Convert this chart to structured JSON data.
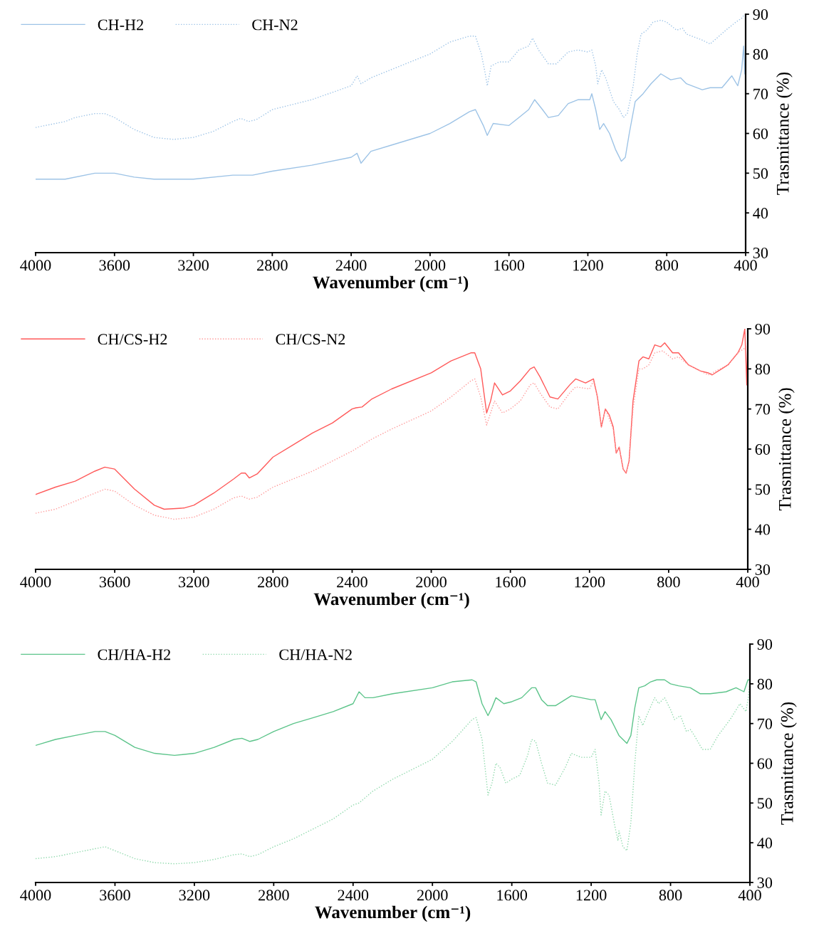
{
  "chart_data": [
    {
      "type": "line",
      "xlabel": "Wavenumber (cm⁻¹)",
      "ylabel": "Trasmittance (%)",
      "xlim": [
        4000,
        400
      ],
      "ylim": [
        30,
        90
      ],
      "xticks": [
        4000,
        3600,
        3200,
        2800,
        2400,
        2000,
        1600,
        1200,
        800,
        400
      ],
      "yticks": [
        30,
        40,
        50,
        60,
        70,
        80,
        90
      ],
      "grid": false,
      "legend": "top left",
      "series": [
        {
          "name": "CH-H2",
          "color": "#9dc3e6",
          "line_style": "solid",
          "x": [
            4000,
            3850,
            3700,
            3600,
            3500,
            3400,
            3200,
            3000,
            2900,
            2800,
            2600,
            2400,
            2370,
            2350,
            2300,
            2200,
            2000,
            1900,
            1800,
            1770,
            1730,
            1710,
            1680,
            1600,
            1550,
            1500,
            1470,
            1430,
            1400,
            1350,
            1300,
            1250,
            1190,
            1180,
            1160,
            1140,
            1120,
            1090,
            1060,
            1030,
            1010,
            990,
            960,
            920,
            880,
            830,
            780,
            730,
            700,
            620,
            580,
            520,
            470,
            440,
            420,
            410,
            404
          ],
          "values": [
            48.5,
            48.5,
            50,
            50,
            49,
            48.5,
            48.5,
            49.5,
            49.5,
            50.5,
            52,
            54,
            55,
            52.5,
            55.5,
            57,
            60,
            62.5,
            65.5,
            66,
            62,
            59.5,
            62.5,
            62,
            64,
            66,
            68.5,
            66,
            64,
            64.5,
            67.5,
            68.5,
            68.5,
            70,
            66,
            61,
            62.5,
            60,
            56,
            53,
            54,
            60,
            68,
            70,
            72.5,
            75,
            73.5,
            74,
            72.5,
            71,
            71.5,
            71.5,
            74.5,
            72,
            76,
            82,
            75
          ]
        },
        {
          "name": "CH-N2",
          "color": "#9dc3e6",
          "line_style": "dotted",
          "x": [
            4000,
            3900,
            3850,
            3800,
            3700,
            3650,
            3600,
            3500,
            3400,
            3300,
            3200,
            3100,
            3000,
            2960,
            2920,
            2880,
            2800,
            2600,
            2400,
            2370,
            2350,
            2300,
            2200,
            2000,
            1900,
            1800,
            1770,
            1740,
            1720,
            1710,
            1690,
            1650,
            1600,
            1550,
            1500,
            1480,
            1450,
            1400,
            1360,
            1300,
            1250,
            1200,
            1180,
            1160,
            1150,
            1130,
            1110,
            1070,
            1040,
            1020,
            1000,
            970,
            950,
            930,
            900,
            870,
            830,
            800,
            750,
            720,
            700,
            620,
            580,
            500,
            450,
            420,
            405
          ],
          "values": [
            61.5,
            62.5,
            63,
            64,
            65,
            65,
            64,
            61,
            59,
            58.5,
            59,
            60.5,
            63,
            63.8,
            63,
            63.5,
            66,
            68.5,
            72,
            74.5,
            72.5,
            74,
            76,
            80,
            83,
            84.5,
            84.5,
            80,
            75,
            72,
            77,
            78,
            78,
            81,
            82,
            84,
            81,
            77.5,
            77.5,
            80.5,
            81,
            80.5,
            81,
            77,
            72.5,
            76,
            74,
            68,
            66,
            64,
            65,
            72,
            80,
            85,
            86,
            88,
            88.5,
            88,
            86,
            86.5,
            85,
            83.5,
            82.5,
            86,
            88,
            89,
            90
          ]
        }
      ]
    },
    {
      "type": "line",
      "xlabel": "Wavenumber (cm⁻¹)",
      "ylabel": "Trasmittance (%)",
      "xlim": [
        4000,
        400
      ],
      "ylim": [
        30,
        90
      ],
      "xticks": [
        4000,
        3600,
        3200,
        2800,
        2400,
        2000,
        1600,
        1200,
        800,
        400
      ],
      "yticks": [
        30,
        40,
        50,
        60,
        70,
        80,
        90
      ],
      "grid": false,
      "legend": "top left",
      "series": [
        {
          "name": "CH/CS-H2",
          "color": "#ff5a5a",
          "line_style": "solid",
          "x": [
            4000,
            3900,
            3800,
            3700,
            3650,
            3600,
            3500,
            3400,
            3350,
            3250,
            3200,
            3100,
            3000,
            2960,
            2940,
            2920,
            2880,
            2800,
            2700,
            2600,
            2500,
            2400,
            2380,
            2350,
            2300,
            2200,
            2000,
            1900,
            1800,
            1780,
            1750,
            1720,
            1700,
            1680,
            1640,
            1600,
            1550,
            1500,
            1480,
            1450,
            1400,
            1360,
            1300,
            1270,
            1220,
            1180,
            1160,
            1140,
            1120,
            1100,
            1080,
            1065,
            1050,
            1030,
            1015,
            1000,
            980,
            950,
            930,
            900,
            870,
            840,
            820,
            780,
            750,
            700,
            640,
            600,
            580,
            500,
            450,
            430,
            415,
            405,
            400
          ],
          "values": [
            48.7,
            50.5,
            52,
            54.5,
            55.5,
            55,
            50,
            46,
            45,
            45.3,
            46,
            49,
            52.5,
            54,
            54,
            52.8,
            53.8,
            58,
            61,
            64,
            66.5,
            70,
            70.3,
            70.5,
            72.5,
            75,
            79,
            82,
            84,
            84,
            80,
            69,
            72,
            76.5,
            73.5,
            74.5,
            77,
            80,
            80.5,
            78,
            73,
            72.5,
            76,
            77.5,
            76.5,
            77.5,
            73,
            65.5,
            70,
            68.5,
            65.5,
            59,
            60.5,
            55,
            54,
            57,
            72,
            82,
            83,
            82.5,
            86,
            85.5,
            86.5,
            84,
            84,
            81,
            79.5,
            79,
            78.5,
            81,
            84,
            86,
            90,
            76,
            88
          ]
        },
        {
          "name": "CH/CS-N2",
          "color": "#ff9999",
          "line_style": "dotted",
          "x": [
            4000,
            3900,
            3800,
            3700,
            3650,
            3600,
            3500,
            3400,
            3300,
            3200,
            3100,
            3000,
            2960,
            2920,
            2880,
            2800,
            2600,
            2400,
            2300,
            2200,
            2000,
            1900,
            1800,
            1780,
            1750,
            1720,
            1700,
            1680,
            1640,
            1600,
            1550,
            1500,
            1480,
            1450,
            1400,
            1360,
            1300,
            1270,
            1200,
            1180,
            1160,
            1140,
            1120,
            1080,
            1065,
            1050,
            1030,
            1015,
            1000,
            980,
            950,
            930,
            900,
            870,
            830,
            780,
            750,
            700,
            640,
            600,
            500,
            450,
            420,
            400
          ],
          "values": [
            44,
            45,
            47,
            49,
            50,
            49.5,
            46,
            43.5,
            42.5,
            43,
            45,
            47.8,
            48.3,
            47.5,
            48,
            50.5,
            54.5,
            59.5,
            62.5,
            65,
            69.5,
            73,
            77,
            77.5,
            73,
            66,
            69,
            72,
            69,
            70,
            72,
            76,
            76.5,
            74,
            70.5,
            70,
            74,
            75.5,
            75,
            77,
            73,
            65.5,
            70,
            65,
            59,
            60.5,
            55,
            54,
            57,
            70,
            80,
            80,
            81,
            84,
            84.5,
            82.5,
            83,
            81,
            79.5,
            78.5,
            81,
            84,
            85,
            86
          ]
        }
      ]
    },
    {
      "type": "line",
      "xlabel": "Wavenumber (cm⁻¹)",
      "ylabel": "Trasmittance (%)",
      "xlim": [
        4000,
        400
      ],
      "ylim": [
        30,
        90
      ],
      "xticks": [
        4000,
        3600,
        3200,
        2800,
        2400,
        2000,
        1600,
        1200,
        800,
        400
      ],
      "yticks": [
        30,
        40,
        50,
        60,
        70,
        80,
        90
      ],
      "grid": false,
      "legend": "top left",
      "series": [
        {
          "name": "CH/HA-H2",
          "color": "#5cc48a",
          "line_style": "solid",
          "x": [
            4000,
            3900,
            3800,
            3700,
            3650,
            3600,
            3500,
            3400,
            3300,
            3200,
            3100,
            3000,
            2960,
            2920,
            2880,
            2800,
            2700,
            2600,
            2500,
            2400,
            2370,
            2340,
            2300,
            2200,
            2000,
            1900,
            1800,
            1780,
            1750,
            1720,
            1700,
            1680,
            1640,
            1600,
            1550,
            1500,
            1480,
            1450,
            1420,
            1380,
            1300,
            1250,
            1200,
            1180,
            1150,
            1130,
            1100,
            1080,
            1060,
            1040,
            1020,
            1000,
            980,
            960,
            930,
            900,
            870,
            830,
            800,
            760,
            700,
            650,
            600,
            520,
            470,
            430,
            410,
            400
          ],
          "values": [
            64.5,
            66,
            67,
            68,
            68,
            67,
            64,
            62.5,
            62,
            62.5,
            64,
            66,
            66.3,
            65.5,
            66,
            68,
            70,
            71.5,
            73,
            75,
            78,
            76.5,
            76.5,
            77.5,
            79,
            80.5,
            81,
            80.5,
            75,
            72,
            74,
            76.5,
            75,
            75.5,
            76.5,
            79,
            79,
            76,
            74.5,
            74.5,
            77,
            76.5,
            76,
            76,
            71,
            73,
            71,
            69,
            67,
            66,
            65,
            67,
            74,
            79,
            79.5,
            80.5,
            81,
            81,
            80,
            79.5,
            79,
            77.5,
            77.5,
            78,
            79,
            78,
            81,
            81
          ]
        },
        {
          "name": "CH/HA-N2",
          "color": "#8fd9ac",
          "line_style": "dotted",
          "x": [
            4000,
            3900,
            3800,
            3700,
            3650,
            3600,
            3500,
            3400,
            3300,
            3200,
            3100,
            3000,
            2960,
            2920,
            2880,
            2800,
            2700,
            2600,
            2500,
            2400,
            2370,
            2300,
            2200,
            2000,
            1900,
            1800,
            1780,
            1750,
            1720,
            1700,
            1680,
            1660,
            1630,
            1600,
            1560,
            1520,
            1500,
            1480,
            1450,
            1420,
            1380,
            1330,
            1300,
            1250,
            1200,
            1180,
            1160,
            1150,
            1130,
            1110,
            1080,
            1065,
            1060,
            1040,
            1020,
            1000,
            980,
            960,
            940,
            920,
            880,
            860,
            830,
            800,
            780,
            750,
            720,
            700,
            680,
            640,
            600,
            560,
            500,
            450,
            420,
            410,
            400
          ],
          "values": [
            36,
            36.5,
            37.5,
            38.5,
            39,
            38,
            36,
            35,
            34.7,
            35,
            35.8,
            37,
            37.2,
            36.5,
            37,
            39,
            41,
            43.5,
            46,
            49.5,
            50,
            53,
            56,
            61,
            65.5,
            71,
            71.5,
            66,
            52,
            55,
            60,
            59,
            55,
            56,
            57,
            62,
            66,
            65.5,
            60,
            55,
            54.5,
            59,
            62.5,
            61.5,
            61.5,
            63.5,
            55,
            47,
            53,
            52,
            44,
            40.5,
            43,
            39,
            38,
            45,
            60,
            72,
            69.5,
            72,
            76.5,
            75,
            76.5,
            73.5,
            71,
            72,
            68,
            68.5,
            67,
            63.5,
            63.5,
            67,
            71,
            75,
            73,
            76,
            80
          ]
        }
      ]
    }
  ]
}
